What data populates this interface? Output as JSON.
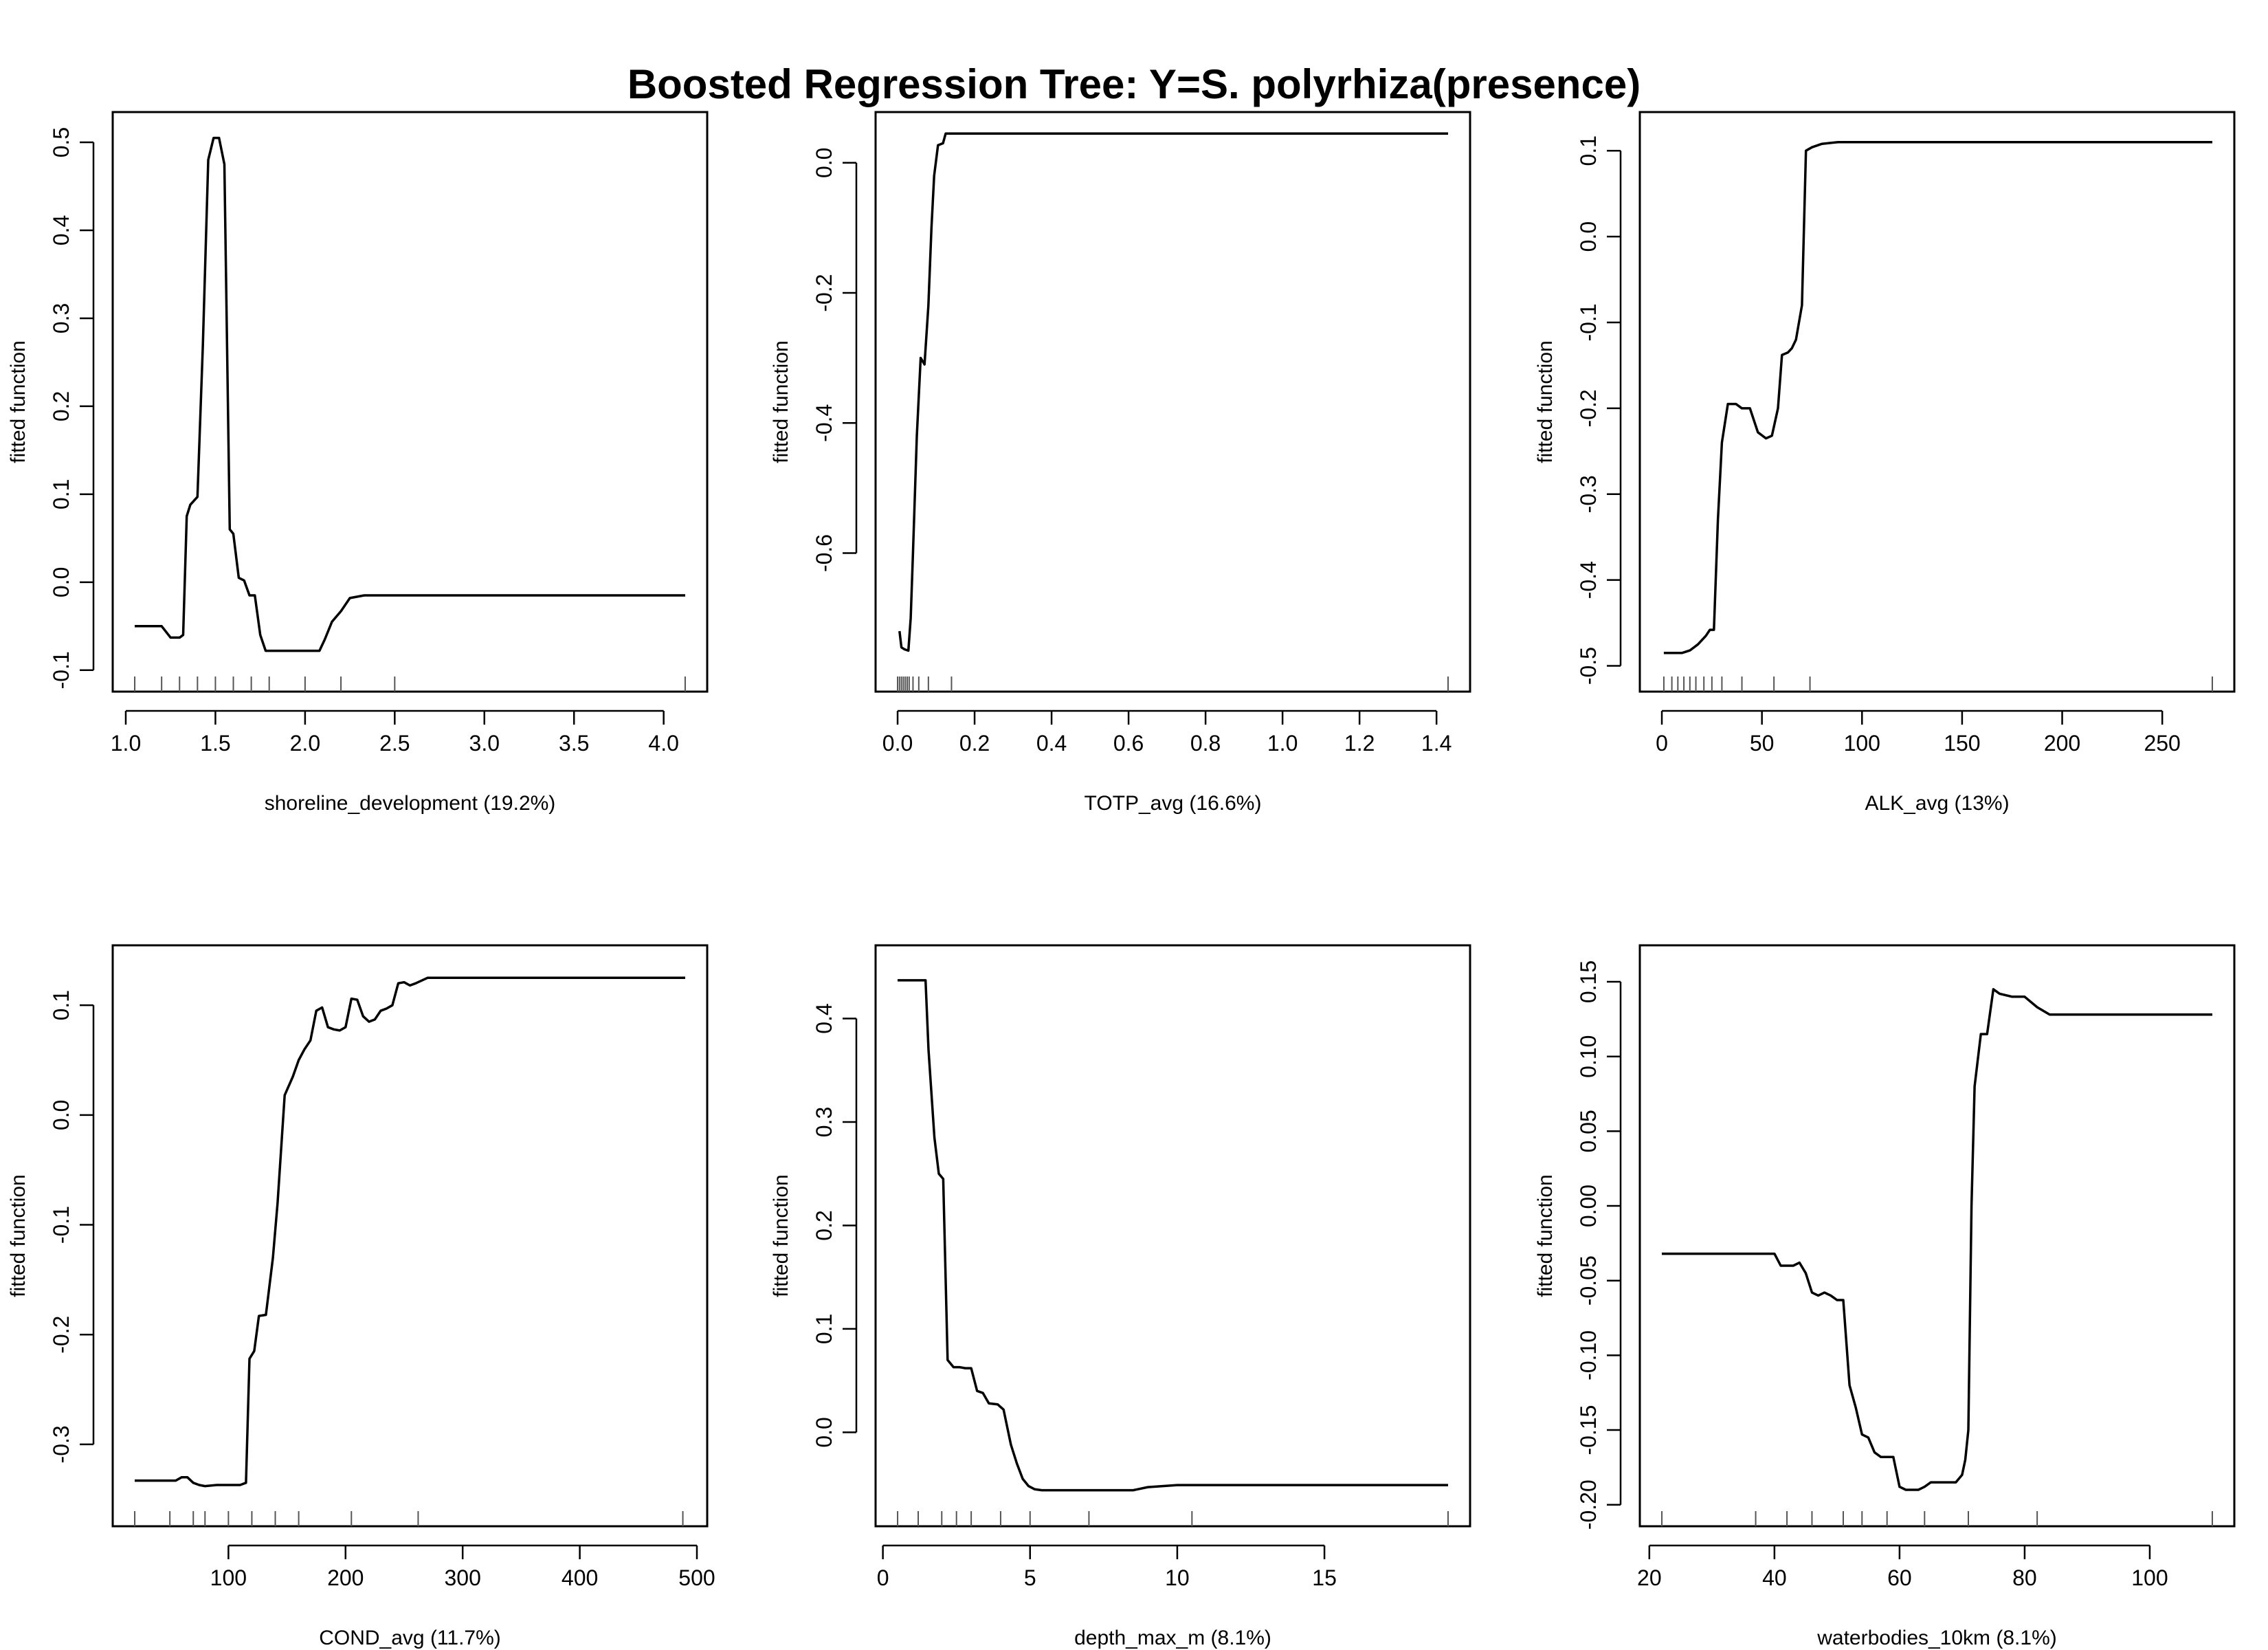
{
  "title": "Boosted Regression Tree: Y=S. polyrhiza(presence)",
  "colors": {
    "line": "#000000",
    "rug": "#555555",
    "frame": "#000000"
  },
  "chart_data": [
    {
      "type": "line",
      "xlabel": "shoreline_development  (19.2%)",
      "ylabel": "fitted function",
      "xlim": [
        1.05,
        4.12
      ],
      "ylim": [
        -0.1,
        0.51
      ],
      "xticks": [
        1.0,
        1.5,
        2.0,
        2.5,
        3.0,
        3.5,
        4.0
      ],
      "xtick_labels": [
        "1.0",
        "1.5",
        "2.0",
        "2.5",
        "3.0",
        "3.5",
        "4.0"
      ],
      "yticks": [
        -0.1,
        0.0,
        0.1,
        0.2,
        0.3,
        0.4,
        0.5
      ],
      "ytick_labels": [
        "-0.1",
        "0.0",
        "0.1",
        "0.2",
        "0.3",
        "0.4",
        "0.5"
      ],
      "x": [
        1.05,
        1.2,
        1.25,
        1.3,
        1.32,
        1.34,
        1.36,
        1.4,
        1.43,
        1.46,
        1.49,
        1.52,
        1.55,
        1.58,
        1.6,
        1.63,
        1.66,
        1.69,
        1.72,
        1.75,
        1.78,
        1.82,
        2.08,
        2.11,
        2.15,
        2.2,
        2.25,
        2.33,
        4.12
      ],
      "y": [
        -0.05,
        -0.05,
        -0.063,
        -0.063,
        -0.06,
        0.075,
        0.088,
        0.097,
        0.27,
        0.48,
        0.505,
        0.505,
        0.475,
        0.06,
        0.055,
        0.005,
        0.002,
        -0.015,
        -0.015,
        -0.06,
        -0.078,
        -0.078,
        -0.078,
        -0.065,
        -0.045,
        -0.033,
        -0.018,
        -0.015,
        -0.015
      ],
      "rug": [
        1.05,
        1.2,
        1.3,
        1.4,
        1.5,
        1.6,
        1.7,
        1.8,
        2.0,
        2.2,
        2.5,
        4.12
      ]
    },
    {
      "type": "line",
      "xlabel": "TOTP_avg  (16.6%)",
      "ylabel": "fitted function",
      "xlim": [
        0.0,
        1.43
      ],
      "ylim": [
        -0.78,
        0.045
      ],
      "xticks": [
        0.0,
        0.2,
        0.4,
        0.6,
        0.8,
        1.0,
        1.2,
        1.4
      ],
      "xtick_labels": [
        "0.0",
        "0.2",
        "0.4",
        "0.6",
        "0.8",
        "1.0",
        "1.2",
        "1.4"
      ],
      "yticks": [
        -0.6,
        -0.4,
        -0.2,
        0.0
      ],
      "ytick_labels": [
        "-0.6",
        "-0.4",
        "-0.2",
        "0.0"
      ],
      "x": [
        0.005,
        0.01,
        0.018,
        0.028,
        0.034,
        0.04,
        0.05,
        0.06,
        0.07,
        0.08,
        0.088,
        0.095,
        0.105,
        0.118,
        0.125,
        0.14,
        0.16,
        1.43
      ],
      "y": [
        -0.72,
        -0.745,
        -0.748,
        -0.75,
        -0.7,
        -0.6,
        -0.42,
        -0.3,
        -0.31,
        -0.22,
        -0.1,
        -0.02,
        0.027,
        0.03,
        0.045,
        0.045,
        0.045,
        0.045
      ],
      "rug": [
        0.0,
        0.005,
        0.01,
        0.015,
        0.02,
        0.025,
        0.03,
        0.04,
        0.055,
        0.08,
        0.14,
        1.43
      ]
    },
    {
      "type": "line",
      "xlabel": "ALK_avg  (13%)",
      "ylabel": "fitted function",
      "xlim": [
        0,
        275
      ],
      "ylim": [
        -0.505,
        0.12
      ],
      "xticks": [
        0,
        50,
        100,
        150,
        200,
        250
      ],
      "xtick_labels": [
        "0",
        "50",
        "100",
        "150",
        "200",
        "250"
      ],
      "yticks": [
        -0.5,
        -0.4,
        -0.3,
        -0.2,
        -0.1,
        0.0,
        0.1
      ],
      "ytick_labels": [
        "-0.5",
        "-0.4",
        "-0.3",
        "-0.2",
        "-0.1",
        "0.0",
        "0.1"
      ],
      "x": [
        1,
        10,
        14,
        18,
        22,
        24,
        26,
        28,
        30,
        33,
        37,
        40,
        44,
        48,
        52,
        55,
        58,
        60,
        63,
        65,
        67,
        70,
        72,
        75,
        80,
        88,
        275
      ],
      "y": [
        -0.485,
        -0.485,
        -0.482,
        -0.475,
        -0.465,
        -0.458,
        -0.458,
        -0.33,
        -0.24,
        -0.195,
        -0.195,
        -0.2,
        -0.2,
        -0.228,
        -0.235,
        -0.232,
        -0.2,
        -0.138,
        -0.135,
        -0.13,
        -0.12,
        -0.08,
        0.1,
        0.104,
        0.108,
        0.11,
        0.11
      ],
      "rug": [
        1,
        5,
        8,
        11,
        14,
        17,
        21,
        25,
        30,
        40,
        56,
        74,
        275
      ]
    },
    {
      "type": "line",
      "xlabel": "COND_avg  (11.7%)",
      "ylabel": "fitted function",
      "xlim": [
        20,
        490
      ],
      "ylim": [
        -0.355,
        0.135
      ],
      "xticks": [
        100,
        200,
        300,
        400,
        500
      ],
      "xtick_labels": [
        "100",
        "200",
        "300",
        "400",
        "500"
      ],
      "yticks": [
        -0.3,
        -0.2,
        -0.1,
        0.0,
        0.1
      ],
      "ytick_labels": [
        "-0.3",
        "-0.2",
        "-0.1",
        "0.0",
        "0.1"
      ],
      "x": [
        20,
        55,
        60,
        65,
        70,
        75,
        80,
        90,
        100,
        110,
        115,
        118,
        122,
        126,
        132,
        138,
        142,
        148,
        155,
        160,
        165,
        170,
        175,
        180,
        185,
        190,
        195,
        200,
        205,
        210,
        215,
        220,
        225,
        230,
        235,
        240,
        245,
        250,
        255,
        260,
        270,
        280,
        490
      ],
      "y": [
        -0.333,
        -0.333,
        -0.33,
        -0.33,
        -0.335,
        -0.337,
        -0.338,
        -0.337,
        -0.337,
        -0.337,
        -0.335,
        -0.222,
        -0.215,
        -0.183,
        -0.182,
        -0.13,
        -0.08,
        0.018,
        0.035,
        0.05,
        0.06,
        0.068,
        0.095,
        0.098,
        0.08,
        0.078,
        0.077,
        0.08,
        0.106,
        0.105,
        0.09,
        0.085,
        0.087,
        0.095,
        0.097,
        0.1,
        0.12,
        0.121,
        0.118,
        0.12,
        0.125,
        0.125,
        0.125
      ],
      "rug": [
        20,
        50,
        70,
        80,
        100,
        120,
        140,
        160,
        205,
        262,
        488
      ]
    },
    {
      "type": "line",
      "xlabel": "depth_max_m  (8.1%)",
      "ylabel": "fitted function",
      "xlim": [
        0.5,
        19.2
      ],
      "ylim": [
        -0.07,
        0.45
      ],
      "xticks": [
        0,
        5,
        10,
        15
      ],
      "xtick_labels": [
        "0",
        "5",
        "10",
        "15"
      ],
      "yticks": [
        0.0,
        0.1,
        0.2,
        0.3,
        0.4
      ],
      "ytick_labels": [
        "0.0",
        "0.1",
        "0.2",
        "0.3",
        "0.4"
      ],
      "x": [
        0.5,
        1.45,
        1.55,
        1.75,
        1.9,
        2.05,
        2.2,
        2.4,
        2.6,
        2.8,
        3.0,
        3.2,
        3.4,
        3.6,
        3.9,
        4.1,
        4.35,
        4.55,
        4.75,
        4.95,
        5.15,
        5.4,
        5.7,
        6.0,
        8.5,
        9.0,
        9.5,
        10.0,
        19.2
      ],
      "y": [
        0.437,
        0.437,
        0.37,
        0.285,
        0.25,
        0.245,
        0.07,
        0.063,
        0.063,
        0.062,
        0.062,
        0.04,
        0.038,
        0.028,
        0.027,
        0.022,
        -0.012,
        -0.03,
        -0.045,
        -0.052,
        -0.055,
        -0.056,
        -0.056,
        -0.056,
        -0.056,
        -0.053,
        -0.052,
        -0.051,
        -0.051
      ],
      "rug": [
        0.5,
        1.2,
        2.0,
        2.5,
        3.0,
        4.0,
        5.0,
        7.0,
        10.5,
        19.2
      ]
    },
    {
      "type": "line",
      "xlabel": "waterbodies_10km  (8.1%)",
      "ylabel": "fitted function",
      "xlim": [
        22,
        110
      ],
      "ylim": [
        -0.2,
        0.16
      ],
      "xticks": [
        20,
        40,
        60,
        80,
        100
      ],
      "xtick_labels": [
        "20",
        "40",
        "60",
        "80",
        "100"
      ],
      "yticks": [
        -0.2,
        -0.15,
        -0.1,
        -0.05,
        0.0,
        0.05,
        0.1,
        0.15
      ],
      "ytick_labels": [
        "-0.20",
        "-0.15",
        "-0.10",
        "-0.05",
        "0.00",
        "0.05",
        "0.10",
        "0.15"
      ],
      "x": [
        22,
        40,
        41,
        43,
        44,
        45,
        46,
        47,
        48,
        49,
        50,
        51,
        52,
        53,
        54,
        55,
        56,
        57,
        58,
        59,
        60,
        61,
        62,
        63,
        64,
        65,
        66,
        67,
        68,
        69,
        70,
        70.5,
        71,
        71.5,
        72,
        73,
        74,
        75,
        76,
        78,
        80,
        82,
        84,
        110
      ],
      "y": [
        -0.032,
        -0.032,
        -0.04,
        -0.04,
        -0.038,
        -0.045,
        -0.058,
        -0.06,
        -0.058,
        -0.06,
        -0.063,
        -0.063,
        -0.12,
        -0.135,
        -0.153,
        -0.155,
        -0.165,
        -0.168,
        -0.168,
        -0.168,
        -0.188,
        -0.19,
        -0.19,
        -0.19,
        -0.188,
        -0.185,
        -0.185,
        -0.185,
        -0.185,
        -0.185,
        -0.18,
        -0.17,
        -0.15,
        0.0,
        0.08,
        0.115,
        0.115,
        0.145,
        0.142,
        0.14,
        0.14,
        0.133,
        0.128,
        0.128
      ],
      "rug": [
        22,
        37,
        42,
        46,
        51,
        54,
        58,
        64,
        71,
        82,
        110
      ]
    }
  ]
}
